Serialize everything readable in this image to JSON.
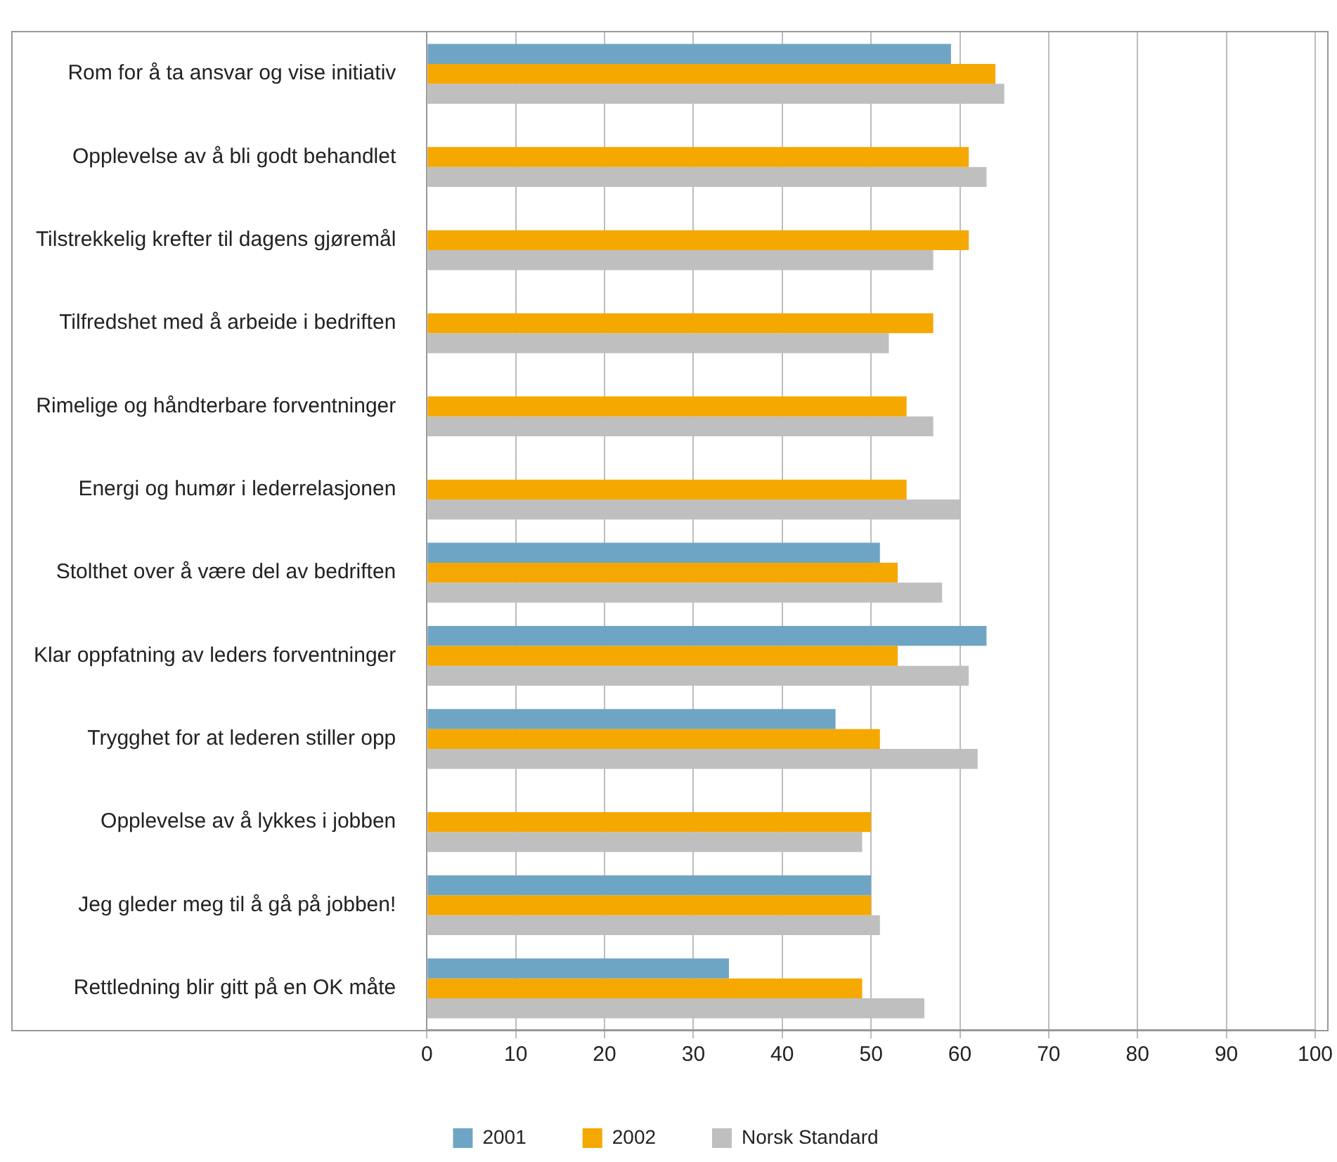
{
  "chart_data": {
    "type": "bar",
    "orientation": "horizontal",
    "categories": [
      "Rom for å ta ansvar og vise initiativ",
      "Opplevelse av å bli godt behandlet",
      "Tilstrekkelig krefter til dagens gjøremål",
      "Tilfredshet med å arbeide i bedriften",
      "Rimelige og håndterbare forventninger",
      "Energi og humør i lederrelasjonen",
      "Stolthet over å være del av bedriften",
      "Klar oppfatning av leders forventninger",
      "Trygghet for at lederen stiller opp",
      "Opplevelse av å lykkes i jobben",
      "Jeg gleder meg til å gå på jobben!",
      "Rettledning blir gitt på en OK måte"
    ],
    "series": [
      {
        "name": "2001",
        "color": "#6fa5c4",
        "values": [
          59,
          null,
          null,
          null,
          null,
          null,
          51,
          63,
          46,
          null,
          50,
          34
        ]
      },
      {
        "name": "2002",
        "color": "#f5a800",
        "values": [
          64,
          61,
          61,
          57,
          54,
          54,
          53,
          53,
          51,
          50,
          50,
          49
        ]
      },
      {
        "name": "Norsk Standard",
        "color": "#bfbfbf",
        "values": [
          65,
          63,
          57,
          52,
          57,
          60,
          58,
          61,
          62,
          49,
          51,
          56
        ]
      }
    ],
    "xlim": [
      0,
      100
    ],
    "xticks": [
      0,
      10,
      20,
      30,
      40,
      50,
      60,
      70,
      80,
      90,
      100
    ],
    "grid": "x",
    "legend": "bottom"
  }
}
